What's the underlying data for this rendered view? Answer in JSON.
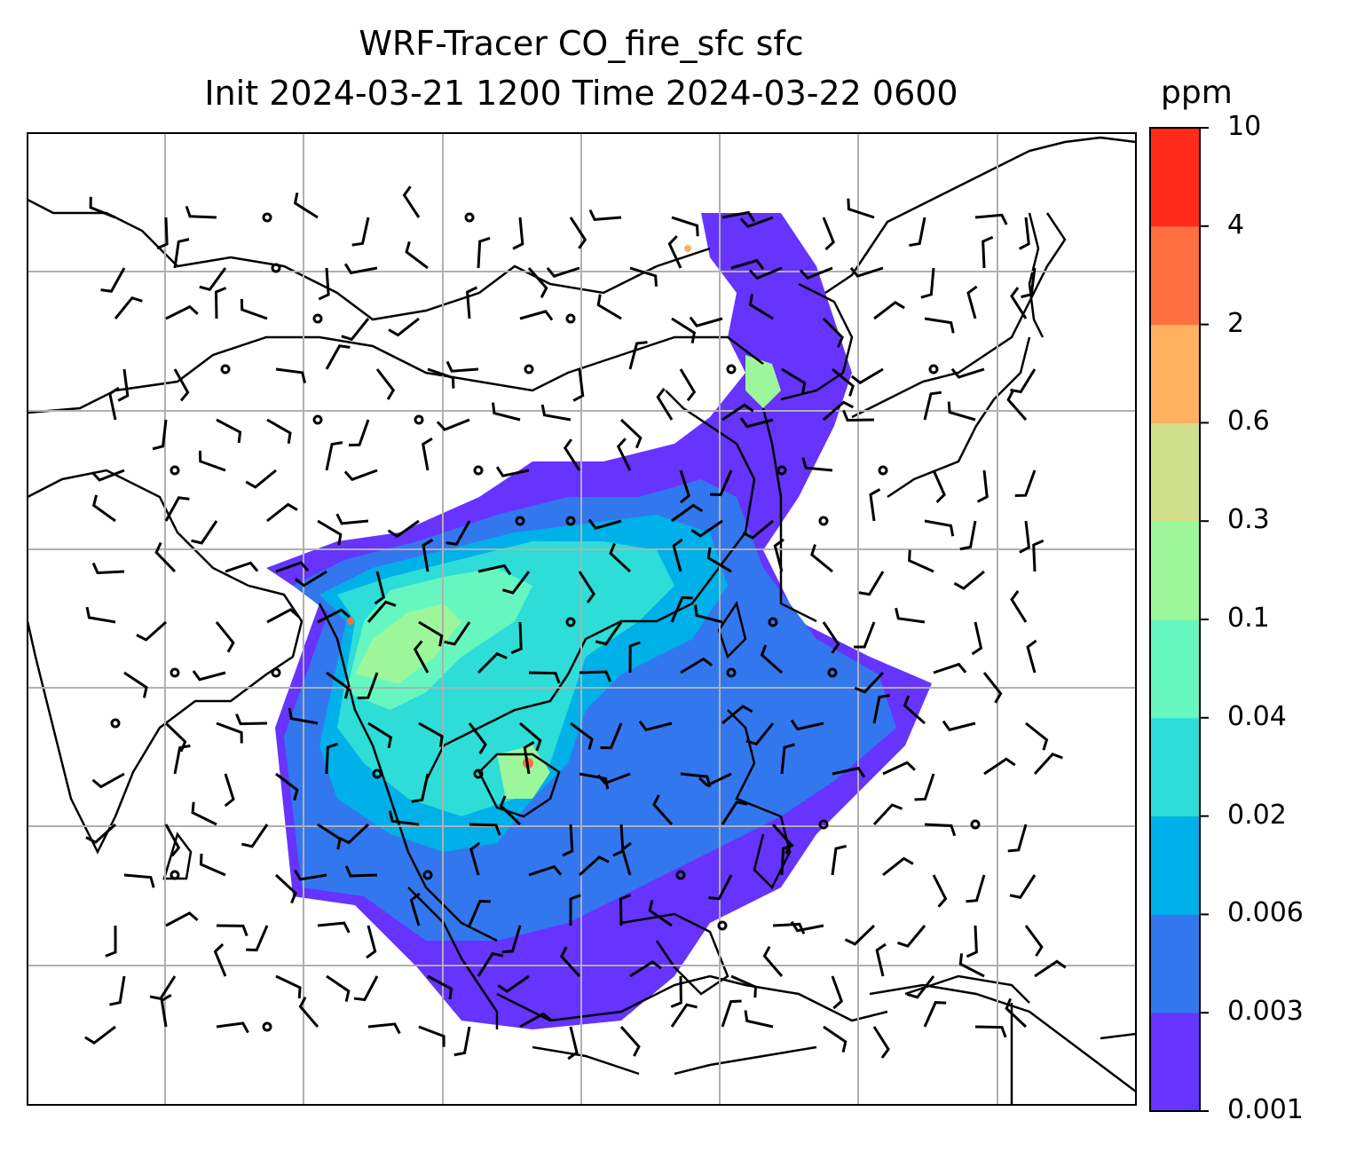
{
  "title": {
    "line1": "WRF-Tracer CO_fire_sfc sfc",
    "line2": "Init 2024-03-21 1200 Time 2024-03-22 0600"
  },
  "colorbar": {
    "unit": "ppm",
    "levels": [
      "0.001",
      "0.003",
      "0.006",
      "0.02",
      "0.04",
      "0.1",
      "0.3",
      "0.6",
      "2",
      "4",
      "10"
    ],
    "colors": [
      "#6633ff",
      "#3377ee",
      "#00b0e8",
      "#2edcd8",
      "#66f7c0",
      "#9cf79a",
      "#d0e08a",
      "#ffb060",
      "#ff7040",
      "#ff2a1a"
    ]
  },
  "map": {
    "region": "South and East Asia",
    "gridlines": true,
    "wind_barbs": true,
    "coastlines": true
  }
}
